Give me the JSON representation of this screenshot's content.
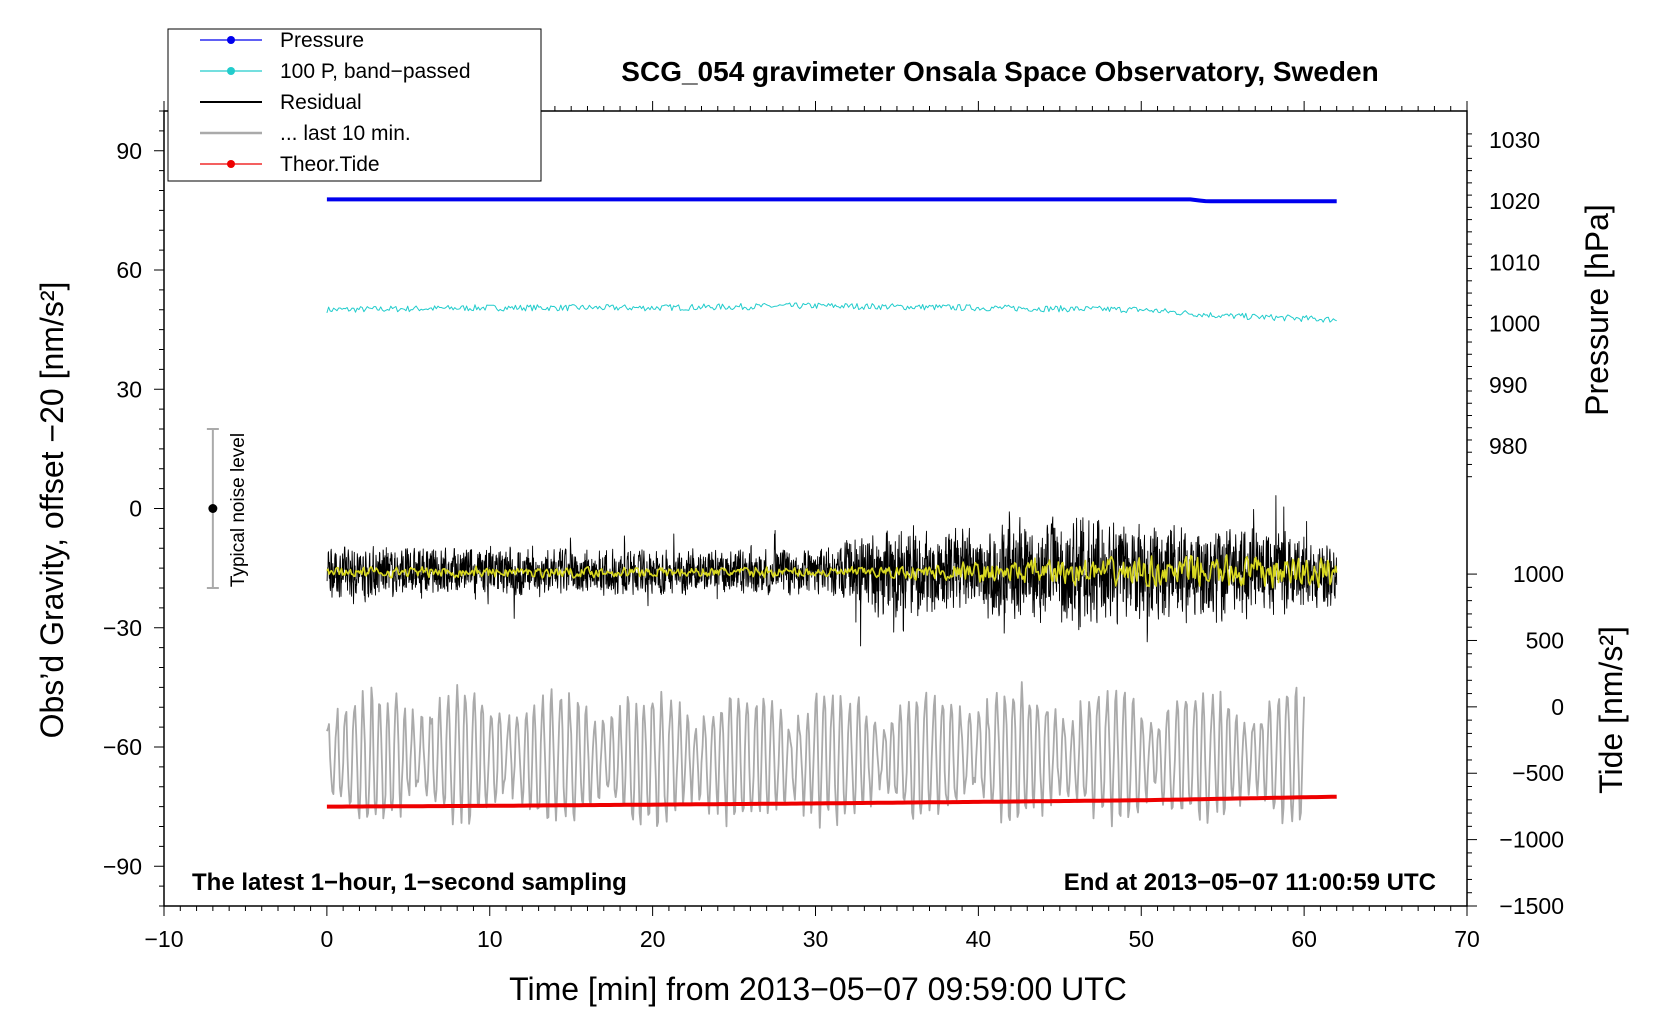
{
  "chart_data": {
    "type": "line",
    "title": "SCG_054 gravimeter Onsala Space Observatory, Sweden",
    "xlabel": "Time [min] from 2013−05−07 09:59:00 UTC",
    "ylabel_left": "Obs’d Gravity, offset −20 [nm/s²]",
    "ylabel_right_pressure": "Pressure [hPa]",
    "ylabel_right_tide": "Tide [nm/s²]",
    "xlim": [
      -10,
      70
    ],
    "ylim_left": [
      -100,
      100
    ],
    "x_ticks": [
      -10,
      0,
      10,
      20,
      30,
      40,
      50,
      60,
      70
    ],
    "x_tick_labels": [
      "−10",
      "0",
      "10",
      "20",
      "30",
      "40",
      "50",
      "60",
      "70"
    ],
    "y_left_ticks": [
      -90,
      -60,
      -30,
      0,
      30,
      60,
      90
    ],
    "y_left_tick_labels": [
      "−90",
      "−60",
      "−30",
      "0",
      "30",
      "60",
      "90"
    ],
    "pressure_axis": {
      "ticks": [
        980,
        990,
        1000,
        1010,
        1020,
        1030
      ],
      "tick_labels": [
        "980",
        "990",
        "1000",
        "1010",
        "1020",
        "1030"
      ],
      "calibration": {
        "value_a": 1000,
        "at_left_a": 46.5,
        "value_b": 1020,
        "at_left_b": 77.3
      }
    },
    "tide_axis": {
      "ticks": [
        -1500,
        -1000,
        -500,
        0,
        500,
        1000
      ],
      "tick_labels": [
        "−1500",
        "−1000",
        "−500",
        "0",
        "500",
        "1000"
      ],
      "calibration": {
        "value_a": 1000,
        "at_left_a": -16.5,
        "value_b": -1500,
        "at_left_b": -100
      }
    },
    "legend": [
      {
        "label": "Pressure",
        "color": "#0000ee",
        "marker": true
      },
      {
        "label": "100 P, band−passed",
        "color": "#22cccc",
        "marker": true
      },
      {
        "label": "Residual",
        "color": "#000000",
        "marker": false
      },
      {
        "label": "... last 10 min.",
        "color": "#aaaaaa",
        "marker": false
      },
      {
        "label": "Theor.Tide",
        "color": "#ee0000",
        "marker": true
      }
    ],
    "series": [
      {
        "name": "Pressure",
        "color": "#0000ee",
        "axis": "pressure",
        "x": [
          0,
          10,
          20,
          30,
          40,
          50,
          53,
          54,
          62
        ],
        "values": [
          1020.3,
          1020.3,
          1020.3,
          1020.3,
          1020.3,
          1020.3,
          1020.3,
          1020.0,
          1020.0
        ]
      },
      {
        "name": "100 P, band−passed",
        "color": "#22cccc",
        "axis": "left",
        "x": [
          0,
          10,
          20,
          30,
          40,
          50,
          55,
          62
        ],
        "values": [
          50,
          50.5,
          50.5,
          51,
          50.5,
          50,
          48.5,
          47.5
        ],
        "noise": 0.8
      },
      {
        "name": "Residual",
        "color": "#000000",
        "axis": "left",
        "x": [
          0,
          10,
          20,
          30,
          35,
          40,
          45,
          50,
          55,
          62
        ],
        "values": [
          -16,
          -16,
          -16,
          -16,
          -16,
          -16,
          -16,
          -16,
          -16,
          -16
        ],
        "noise_env": [
          7,
          7,
          6,
          6,
          13,
          12,
          16,
          14,
          13,
          9
        ]
      },
      {
        "name": "Smoothed residual",
        "color": "#d8d820",
        "axis": "left",
        "x": [
          0,
          33,
          45,
          62
        ],
        "values": [
          -16,
          -16,
          -16,
          -16
        ],
        "noise_env": [
          1.5,
          1.5,
          4,
          5
        ]
      },
      {
        "name": "... last 10 min.",
        "color": "#aaaaaa",
        "axis": "left",
        "x": [
          0,
          10,
          20,
          30,
          40,
          50,
          60
        ],
        "values": [
          -63,
          -62,
          -63,
          -63,
          -62,
          -62,
          -63
        ],
        "amplitude": 11
      },
      {
        "name": "Theor.Tide",
        "color": "#ee0000",
        "axis": "left",
        "x": [
          0,
          10,
          20,
          30,
          40,
          50,
          62
        ],
        "values": [
          -75,
          -74.8,
          -74.5,
          -74.2,
          -73.8,
          -73.4,
          -72.5
        ]
      }
    ],
    "noise_bar": {
      "x": -7,
      "center": 0,
      "half_range": 20,
      "label": "Typical noise level"
    },
    "annotations": {
      "left": "The latest 1−hour, 1−second sampling",
      "right": "End at 2013−05−07 11:00:59 UTC"
    }
  }
}
